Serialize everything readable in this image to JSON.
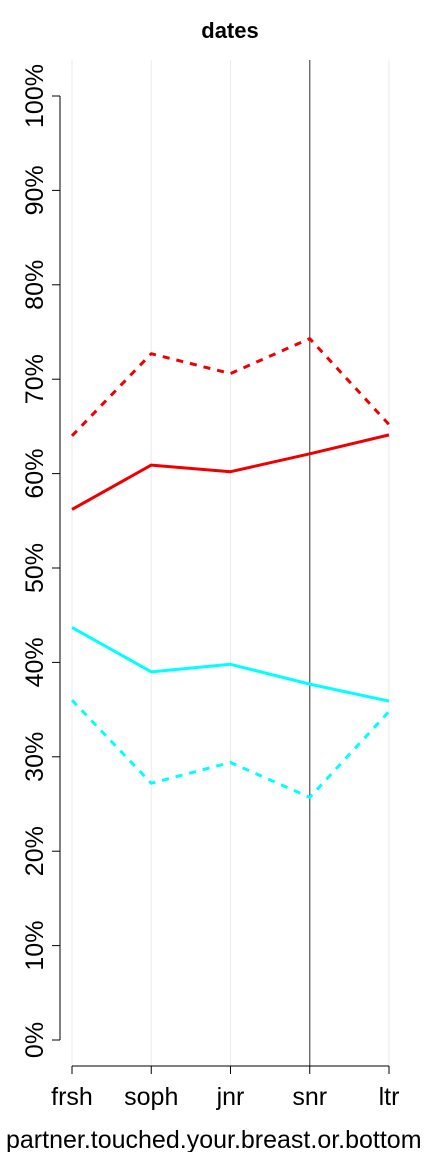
{
  "chart_data": {
    "type": "line",
    "title": "dates",
    "xlabel": "partner.touched.your.breast.or.bottom",
    "ylabel": "",
    "categories": [
      "frsh",
      "soph",
      "jnr",
      "snr",
      "ltr"
    ],
    "ylim": [
      0,
      100
    ],
    "y_ticks": [
      "0%",
      "10%",
      "20%",
      "30%",
      "40%",
      "50%",
      "60%",
      "70%",
      "80%",
      "90%",
      "100%"
    ],
    "y_tick_values": [
      0,
      10,
      20,
      30,
      40,
      50,
      60,
      70,
      80,
      90,
      100
    ],
    "reference_line_category": "snr",
    "grid": "vertical",
    "series": [
      {
        "values": [
          56.2,
          60.9,
          60.2,
          62.1,
          64.1
        ],
        "color": "#ee0000",
        "style": "solid"
      },
      {
        "values": [
          64.0,
          72.7,
          70.6,
          74.3,
          65.2
        ],
        "color": "#ee0000",
        "style": "dotted"
      },
      {
        "values": [
          43.7,
          39.0,
          39.8,
          37.7,
          35.9
        ],
        "color": "#00ffff",
        "style": "solid"
      },
      {
        "values": [
          36.0,
          27.2,
          29.4,
          25.7,
          34.8
        ],
        "color": "#00ffff",
        "style": "dotted"
      }
    ]
  }
}
